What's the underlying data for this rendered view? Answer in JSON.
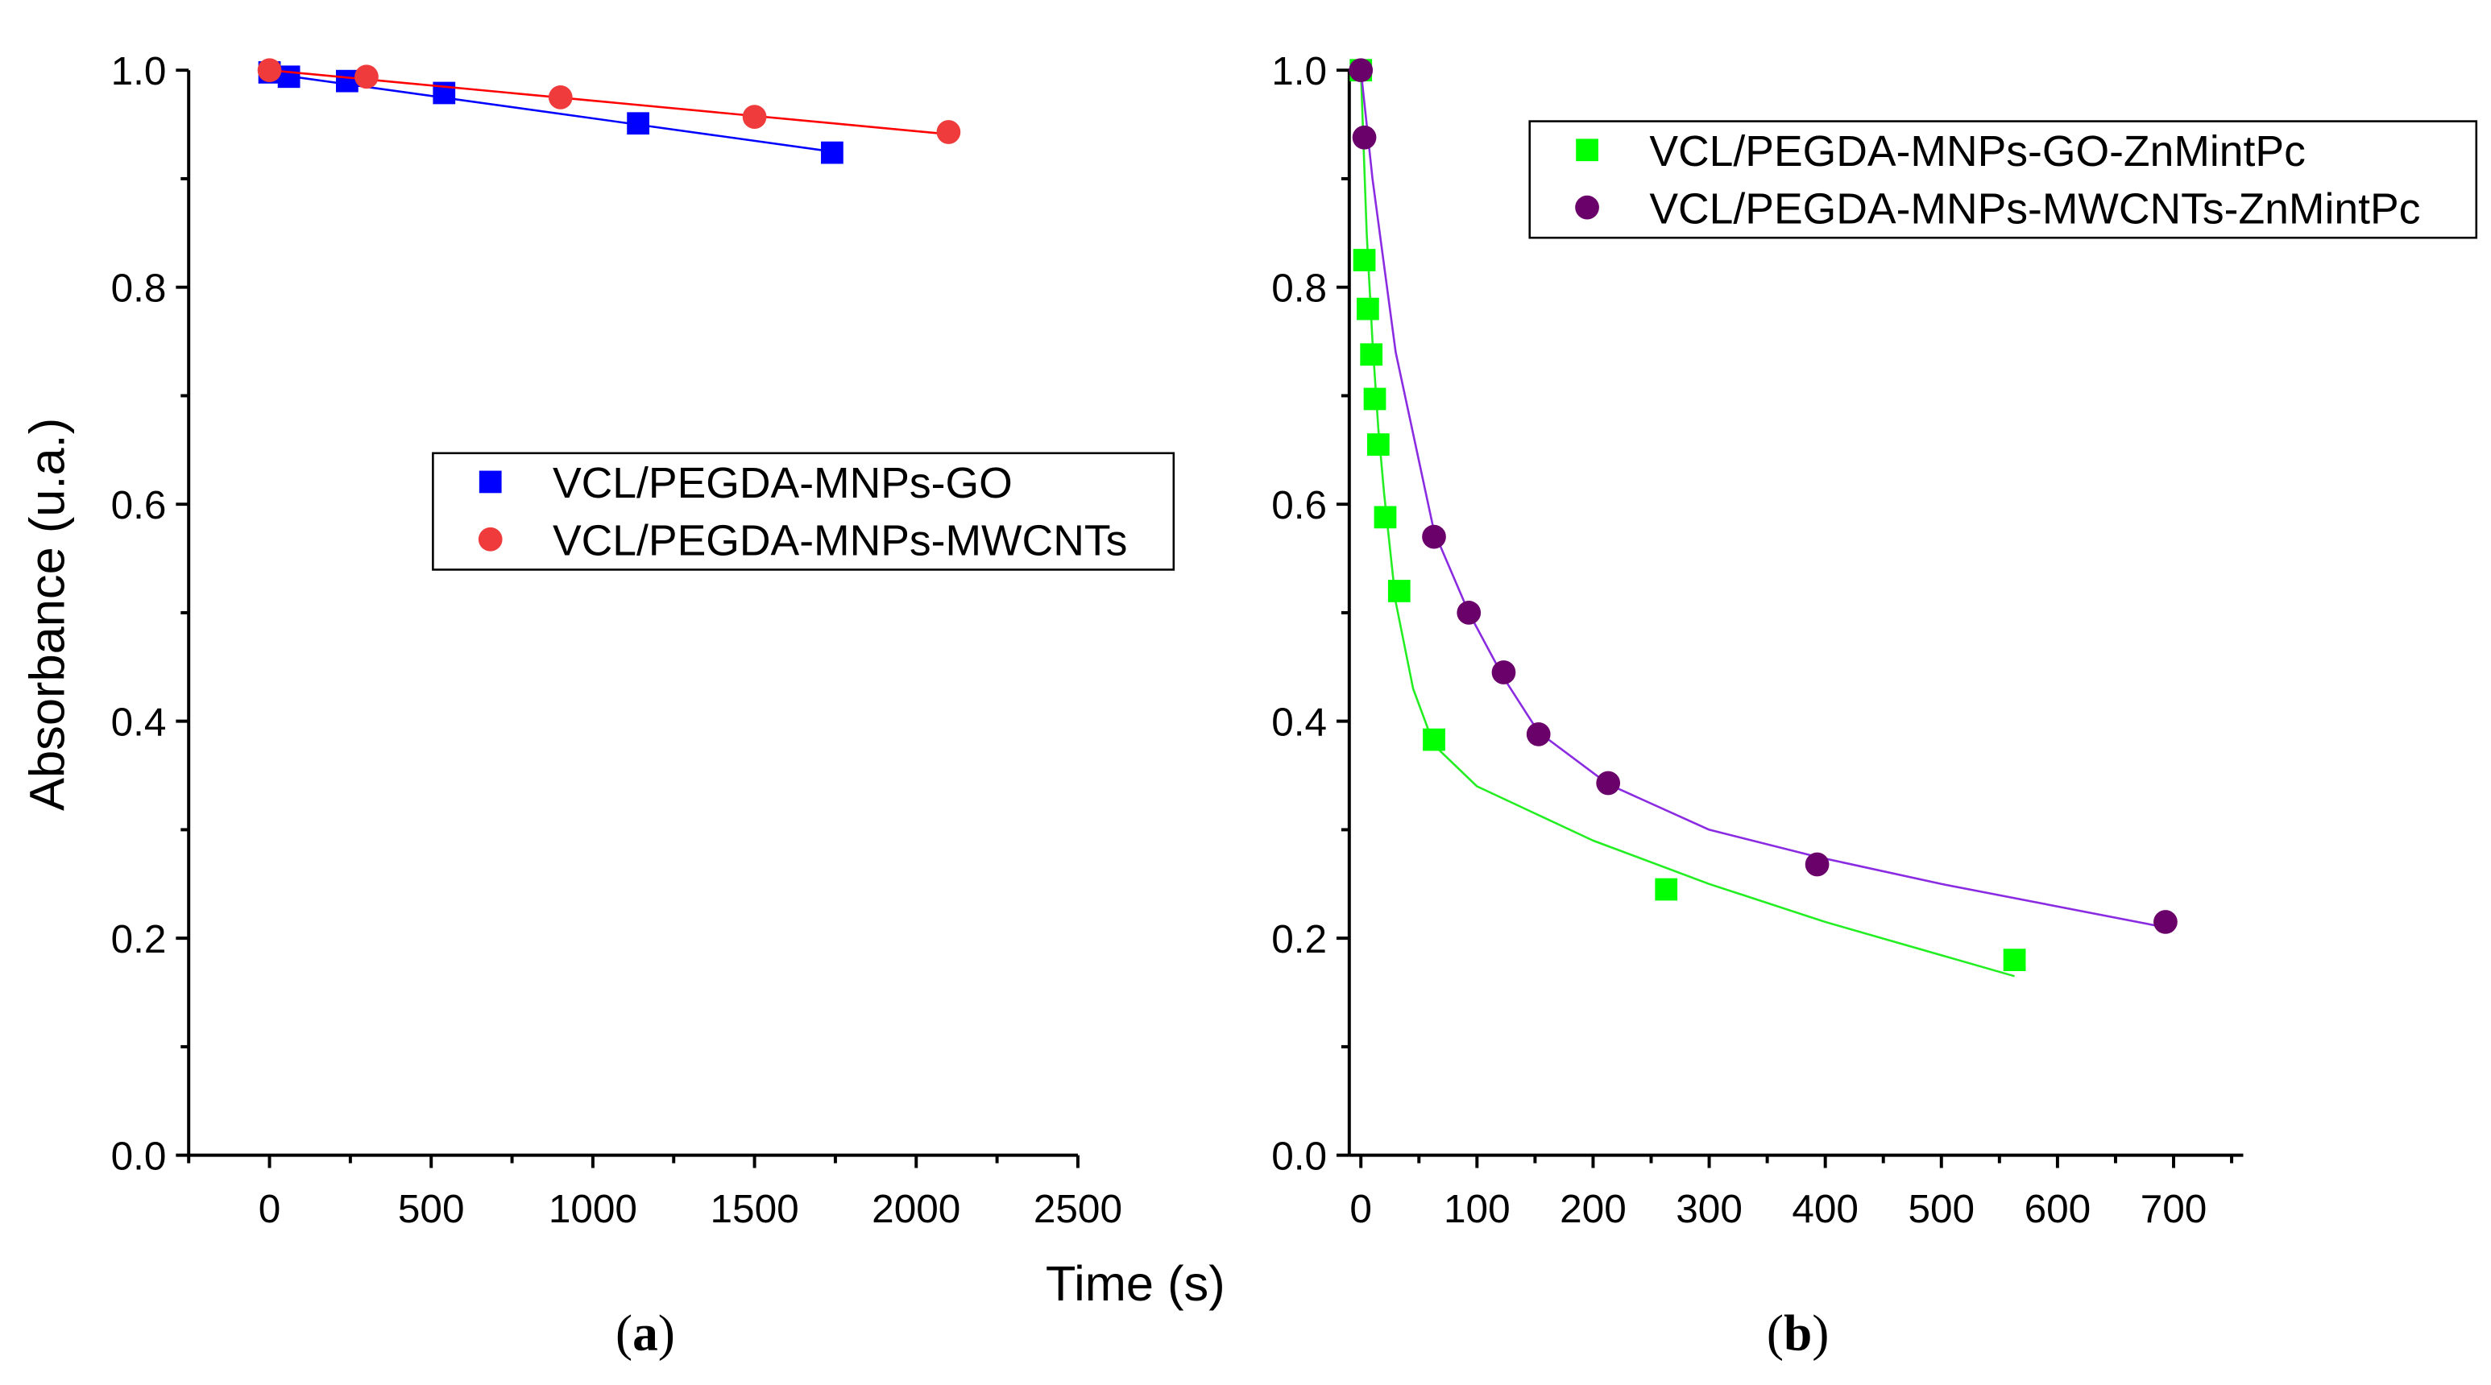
{
  "chart_data": [
    {
      "type": "scatter",
      "panel_label": "(a)",
      "panel_letter": "a",
      "xlabel": "Time (s)",
      "ylabel": "Absorbance (u.a.)",
      "xlim": [
        -250,
        2500
      ],
      "ylim": [
        0,
        1.0
      ],
      "xticks": [
        0,
        500,
        1000,
        1500,
        2000,
        2500
      ],
      "yticks": [
        0.0,
        0.2,
        0.4,
        0.6,
        0.8,
        1.0
      ],
      "ytick_labels": [
        "0.0",
        "0.2",
        "0.4",
        "0.6",
        "0.8",
        "1.0"
      ],
      "legend_position": "center-right",
      "series": [
        {
          "name": "VCL/PEGDA-MNPs-GO",
          "marker": "square",
          "color": "#0000ff",
          "line_color": "#0000ff",
          "x": [
            0,
            60,
            240,
            540,
            1140,
            1740
          ],
          "y": [
            0.998,
            0.994,
            0.99,
            0.979,
            0.951,
            0.924
          ],
          "fit": {
            "x": [
              0,
              1740
            ],
            "y": [
              0.997,
              0.925
            ]
          }
        },
        {
          "name": "VCL/PEGDA-MNPs-MWCNTs",
          "marker": "circle",
          "color": "#ef3b3b",
          "line_color": "#ff0000",
          "x": [
            0,
            300,
            900,
            1500,
            2100
          ],
          "y": [
            1.0,
            0.994,
            0.975,
            0.957,
            0.943
          ],
          "fit": {
            "x": [
              0,
              2100
            ],
            "y": [
              1.0,
              0.941
            ]
          }
        }
      ]
    },
    {
      "type": "scatter",
      "panel_label": "(b)",
      "panel_letter": "b",
      "xlabel": "",
      "ylabel": "",
      "xlim": [
        -10,
        760
      ],
      "ylim": [
        0,
        1.0
      ],
      "xticks": [
        0,
        100,
        200,
        300,
        400,
        500,
        600,
        700
      ],
      "yticks": [
        0.0,
        0.2,
        0.4,
        0.6,
        0.8,
        1.0
      ],
      "ytick_labels": [
        "0.0",
        "0.2",
        "0.4",
        "0.6",
        "0.8",
        "1.0"
      ],
      "legend_position": "top-right",
      "series": [
        {
          "name": "VCL/PEGDA-MNPs-GO-ZnMintPc",
          "marker": "square",
          "color": "#00ff00",
          "line_color": "#22ee22",
          "x": [
            0,
            3,
            6,
            9,
            12,
            15,
            21,
            33,
            63,
            263,
            563
          ],
          "y": [
            1.0,
            0.825,
            0.78,
            0.738,
            0.697,
            0.655,
            0.588,
            0.52,
            0.383,
            0.245,
            0.18
          ],
          "fit": {
            "x": [
              0,
              5,
              10,
              15,
              20,
              30,
              45,
              63,
              100,
              200,
              300,
              400,
              563
            ],
            "y": [
              1.0,
              0.85,
              0.75,
              0.67,
              0.61,
              0.51,
              0.43,
              0.378,
              0.34,
              0.29,
              0.25,
              0.215,
              0.165
            ]
          }
        },
        {
          "name": "VCL/PEGDA-MNPs-MWCNTs-ZnMintPc",
          "marker": "circle",
          "color": "#6a006a",
          "line_color": "#8a2be2",
          "x": [
            0,
            3,
            63,
            93,
            123,
            153,
            213,
            393,
            693
          ],
          "y": [
            1.0,
            0.938,
            0.57,
            0.5,
            0.445,
            0.388,
            0.343,
            0.268,
            0.215
          ],
          "fit": {
            "x": [
              0,
              10,
              30,
              63,
              93,
              123,
              153,
              213,
              300,
              393,
              500,
              693
            ],
            "y": [
              1.0,
              0.9,
              0.74,
              0.575,
              0.5,
              0.44,
              0.39,
              0.342,
              0.3,
              0.275,
              0.25,
              0.21
            ]
          }
        }
      ]
    }
  ]
}
